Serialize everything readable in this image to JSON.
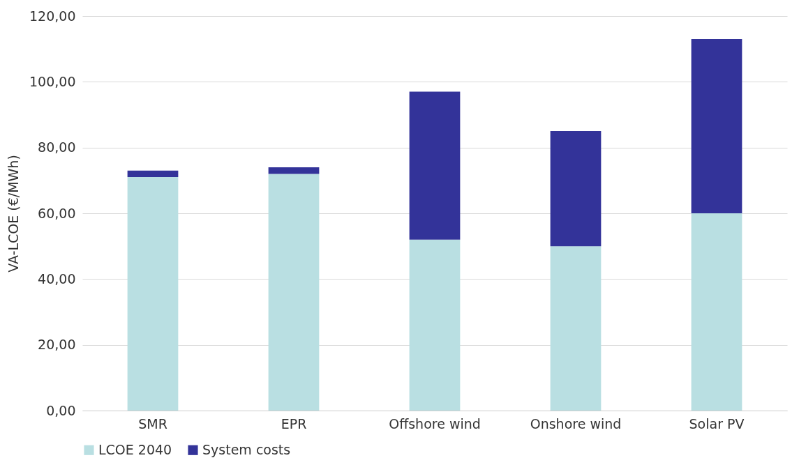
{
  "chart_data": {
    "type": "bar",
    "stacked": true,
    "ylabel": "VA-LCOE (€/MWh)",
    "categories": [
      "SMR",
      "EPR",
      "Offshore wind",
      "Onshore wind",
      "Solar PV"
    ],
    "series": [
      {
        "name": "LCOE 2040",
        "color": "#b9dfe2",
        "values": [
          71,
          72,
          52,
          50,
          60
        ]
      },
      {
        "name": "System costs",
        "color": "#333399",
        "values": [
          2,
          2,
          45,
          35,
          53
        ]
      }
    ],
    "ylim": [
      0,
      120
    ],
    "yticks": [
      {
        "value": 0,
        "label": "0,00"
      },
      {
        "value": 20,
        "label": "20,00"
      },
      {
        "value": 40,
        "label": "40,00"
      },
      {
        "value": 60,
        "label": "60,00"
      },
      {
        "value": 80,
        "label": "80,00"
      },
      {
        "value": 100,
        "label": "100,00"
      },
      {
        "value": 120,
        "label": "120,00"
      }
    ],
    "grid": "y",
    "legend": "bottom"
  }
}
